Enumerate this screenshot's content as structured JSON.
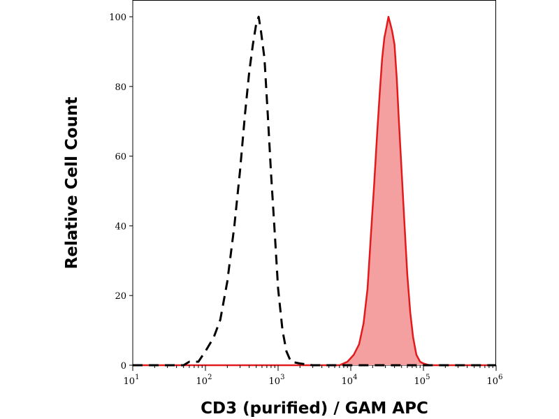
{
  "chart_data": {
    "type": "area",
    "title": "",
    "xlabel": "CD3 (purified) / GAM APC",
    "ylabel": "Relative Cell Count",
    "x_scale": "log",
    "xlim": [
      10,
      1000000
    ],
    "ylim": [
      0,
      100
    ],
    "x_ticks": [
      {
        "base": "10",
        "exp": "1",
        "value": 10
      },
      {
        "base": "10",
        "exp": "2",
        "value": 100
      },
      {
        "base": "10",
        "exp": "3",
        "value": 1000
      },
      {
        "base": "10",
        "exp": "4",
        "value": 10000
      },
      {
        "base": "10",
        "exp": "5",
        "value": 100000
      },
      {
        "base": "10",
        "exp": "6",
        "value": 1000000
      }
    ],
    "y_ticks": [
      "0",
      "20",
      "40",
      "60",
      "80",
      "100"
    ],
    "grid": false,
    "series": [
      {
        "style": "dashed",
        "color": "#000000",
        "fill": "none",
        "points": [
          [
            10,
            0
          ],
          [
            50,
            0
          ],
          [
            60,
            1
          ],
          [
            80,
            1
          ],
          [
            100,
            4
          ],
          [
            130,
            8
          ],
          [
            160,
            13
          ],
          [
            200,
            24
          ],
          [
            250,
            40
          ],
          [
            300,
            56
          ],
          [
            350,
            72
          ],
          [
            400,
            84
          ],
          [
            450,
            92
          ],
          [
            500,
            98
          ],
          [
            540,
            100
          ],
          [
            580,
            96
          ],
          [
            650,
            88
          ],
          [
            720,
            72
          ],
          [
            800,
            55
          ],
          [
            900,
            38
          ],
          [
            1000,
            22
          ],
          [
            1150,
            10
          ],
          [
            1300,
            4
          ],
          [
            1500,
            1
          ],
          [
            2000,
            0.5
          ],
          [
            3000,
            0
          ],
          [
            1000000,
            0
          ]
        ]
      },
      {
        "style": "solid",
        "color": "#e31a1c",
        "fill": "#f5a0a0",
        "points": [
          [
            10,
            0
          ],
          [
            7000,
            0
          ],
          [
            9000,
            1
          ],
          [
            11000,
            3
          ],
          [
            13000,
            6
          ],
          [
            15000,
            12
          ],
          [
            17000,
            22
          ],
          [
            19000,
            38
          ],
          [
            21000,
            52
          ],
          [
            23000,
            66
          ],
          [
            25000,
            78
          ],
          [
            27000,
            88
          ],
          [
            29000,
            94
          ],
          [
            31000,
            97
          ],
          [
            33000,
            100
          ],
          [
            35000,
            98
          ],
          [
            37000,
            96
          ],
          [
            40000,
            92
          ],
          [
            43000,
            82
          ],
          [
            46000,
            70
          ],
          [
            50000,
            56
          ],
          [
            55000,
            40
          ],
          [
            60000,
            26
          ],
          [
            66000,
            15
          ],
          [
            72000,
            8
          ],
          [
            80000,
            3
          ],
          [
            90000,
            1
          ],
          [
            100000,
            0.5
          ],
          [
            120000,
            0
          ],
          [
            1000000,
            0
          ]
        ]
      }
    ]
  }
}
